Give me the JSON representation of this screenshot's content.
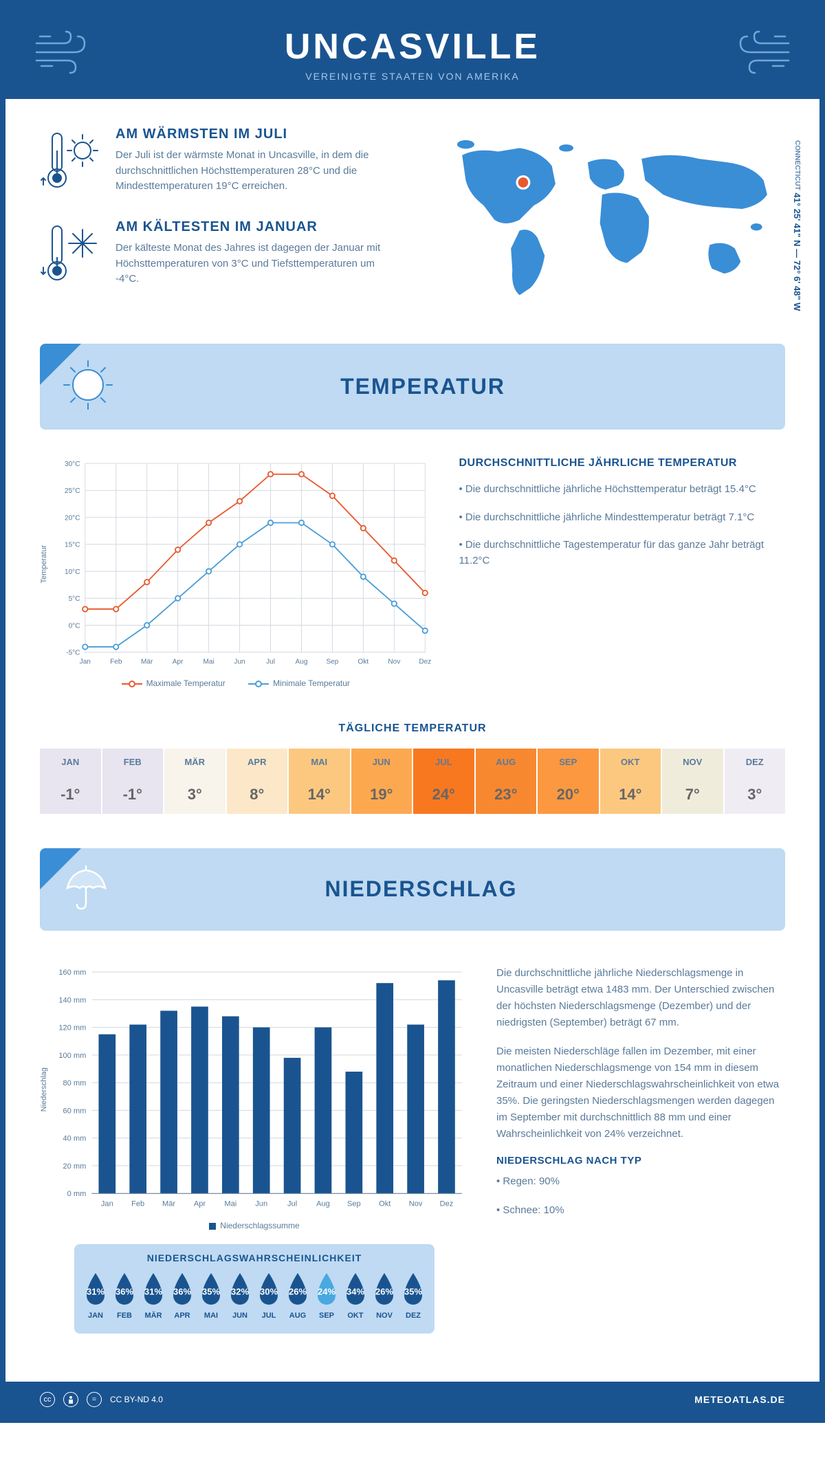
{
  "header": {
    "title": "UNCASVILLE",
    "subtitle": "VEREINIGTE STAATEN VON AMERIKA"
  },
  "location": {
    "coordinates": "41° 25' 41\" N — 72° 6' 48\" W",
    "region": "CONNECTICUT"
  },
  "intro": {
    "warmest": {
      "title": "AM WÄRMSTEN IM JULI",
      "text": "Der Juli ist der wärmste Monat in Uncasville, in dem die durchschnittlichen Höchsttemperaturen 28°C und die Mindesttemperaturen 19°C erreichen."
    },
    "coldest": {
      "title": "AM KÄLTESTEN IM JANUAR",
      "text": "Der kälteste Monat des Jahres ist dagegen der Januar mit Höchsttemperaturen von 3°C und Tiefsttemperaturen um -4°C."
    }
  },
  "temperature": {
    "section_title": "TEMPERATUR",
    "info_title": "DURCHSCHNITTLICHE JÄHRLICHE TEMPERATUR",
    "info_points": [
      "• Die durchschnittliche jährliche Höchsttemperatur beträgt 15.4°C",
      "• Die durchschnittliche jährliche Mindesttemperatur beträgt 7.1°C",
      "• Die durchschnittliche Tagestemperatur für das ganze Jahr beträgt 11.2°C"
    ],
    "chart": {
      "months": [
        "Jan",
        "Feb",
        "Mär",
        "Apr",
        "Mai",
        "Jun",
        "Jul",
        "Aug",
        "Sep",
        "Okt",
        "Nov",
        "Dez"
      ],
      "max_values": [
        3,
        3,
        8,
        14,
        19,
        23,
        28,
        28,
        24,
        18,
        12,
        6
      ],
      "min_values": [
        -4,
        -4,
        0,
        5,
        10,
        15,
        19,
        19,
        15,
        9,
        4,
        -1
      ],
      "max_color": "#e85a2e",
      "min_color": "#4a9ed6",
      "y_min": -5,
      "y_max": 30,
      "y_step": 5,
      "y_label": "Temperatur",
      "grid_color": "#d0d8e0",
      "legend_max": "Maximale Temperatur",
      "legend_min": "Minimale Temperatur"
    },
    "daily_title": "TÄGLICHE TEMPERATUR",
    "daily": {
      "months": [
        "JAN",
        "FEB",
        "MÄR",
        "APR",
        "MAI",
        "JUN",
        "JUL",
        "AUG",
        "SEP",
        "OKT",
        "NOV",
        "DEZ"
      ],
      "values": [
        "-1°",
        "-1°",
        "3°",
        "8°",
        "14°",
        "19°",
        "24°",
        "23°",
        "20°",
        "14°",
        "7°",
        "3°"
      ],
      "colors": [
        "#e8e4f0",
        "#e8e4f0",
        "#f8f4ec",
        "#fce8c8",
        "#fcc880",
        "#fca850",
        "#f87820",
        "#f88830",
        "#fc9840",
        "#fcc880",
        "#f0ecdc",
        "#f0ecf4"
      ]
    }
  },
  "precipitation": {
    "section_title": "NIEDERSCHLAG",
    "chart": {
      "months": [
        "Jan",
        "Feb",
        "Mär",
        "Apr",
        "Mai",
        "Jun",
        "Jul",
        "Aug",
        "Sep",
        "Okt",
        "Nov",
        "Dez"
      ],
      "values": [
        115,
        122,
        132,
        135,
        128,
        120,
        98,
        120,
        88,
        152,
        122,
        154
      ],
      "y_min": 0,
      "y_max": 160,
      "y_step": 20,
      "y_label": "Niederschlag",
      "bar_color": "#1a5490",
      "grid_color": "#d0d8e0",
      "legend": "Niederschlagssumme"
    },
    "info_paragraphs": [
      "Die durchschnittliche jährliche Niederschlagsmenge in Uncasville beträgt etwa 1483 mm. Der Unterschied zwischen der höchsten Niederschlagsmenge (Dezember) und der niedrigsten (September) beträgt 67 mm.",
      "Die meisten Niederschläge fallen im Dezember, mit einer monatlichen Niederschlagsmenge von 154 mm in diesem Zeitraum und einer Niederschlagswahrscheinlichkeit von etwa 35%. Die geringsten Niederschlagsmengen werden dagegen im September mit durchschnittlich 88 mm und einer Wahrscheinlichkeit von 24% verzeichnet."
    ],
    "type_title": "NIEDERSCHLAG NACH TYP",
    "type_points": [
      "• Regen: 90%",
      "• Schnee: 10%"
    ],
    "prob_title": "NIEDERSCHLAGSWAHRSCHEINLICHKEIT",
    "prob": {
      "months": [
        "JAN",
        "FEB",
        "MÄR",
        "APR",
        "MAI",
        "JUN",
        "JUL",
        "AUG",
        "SEP",
        "OKT",
        "NOV",
        "DEZ"
      ],
      "values": [
        "31%",
        "36%",
        "31%",
        "36%",
        "35%",
        "32%",
        "30%",
        "26%",
        "24%",
        "34%",
        "26%",
        "35%"
      ],
      "highlight_index": 8,
      "drop_color": "#1a5490",
      "highlight_color": "#4aa8e0"
    }
  },
  "footer": {
    "license": "CC BY-ND 4.0",
    "site": "METEOATLAS.DE"
  }
}
